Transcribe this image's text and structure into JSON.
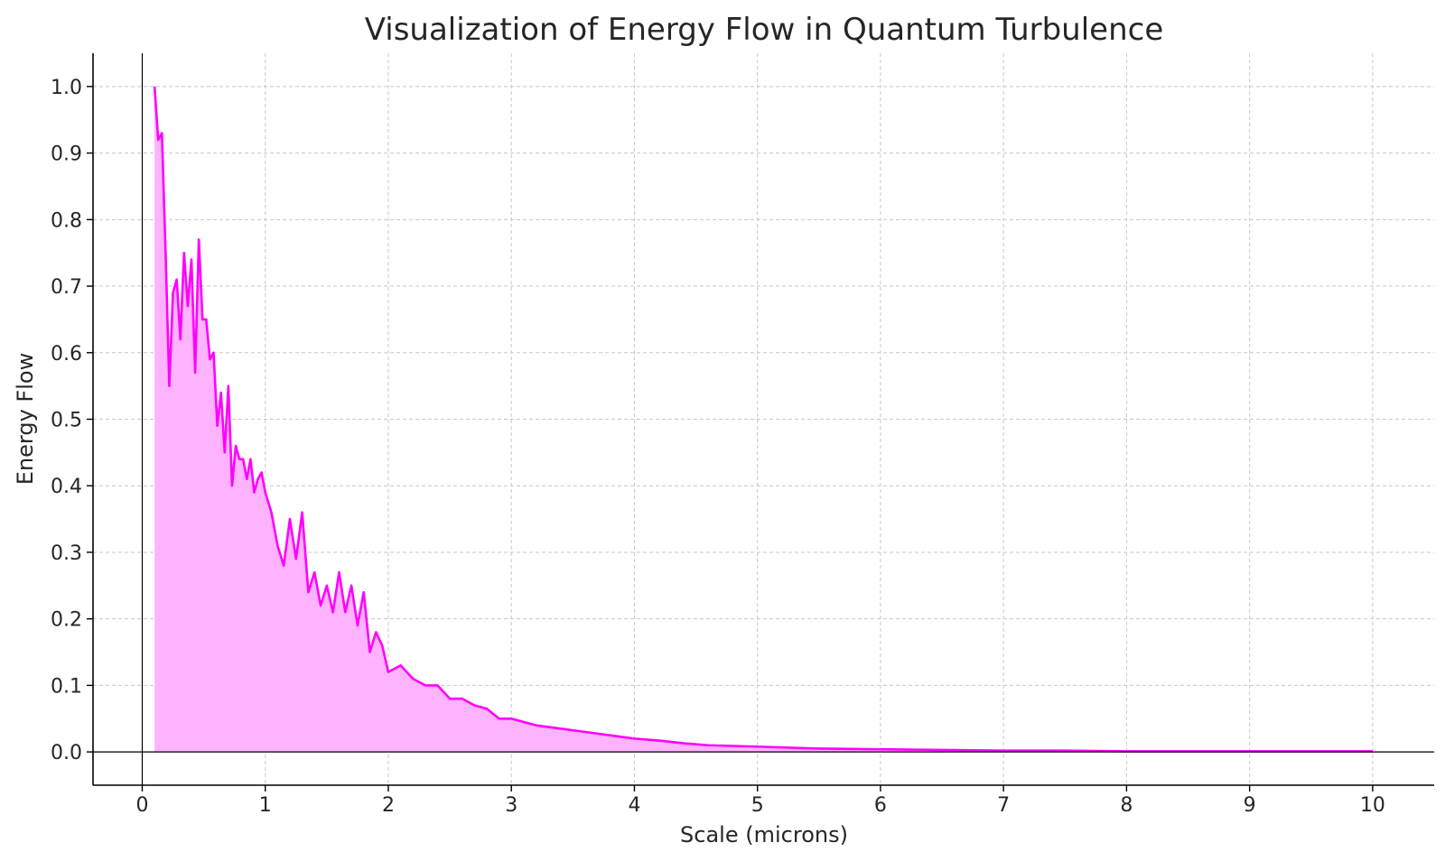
{
  "chart_data": {
    "type": "area",
    "title": "Visualization of Energy Flow in Quantum Turbulence",
    "xlabel": "Scale (microns)",
    "ylabel": "Energy Flow",
    "xlim": [
      -0.4,
      10.5
    ],
    "ylim": [
      -0.05,
      1.05
    ],
    "x_ticks": [
      0,
      1,
      2,
      3,
      4,
      5,
      6,
      7,
      8,
      9,
      10
    ],
    "y_ticks": [
      0.0,
      0.1,
      0.2,
      0.3,
      0.4,
      0.5,
      0.6,
      0.7,
      0.8,
      0.9,
      1.0
    ],
    "x_tick_labels": [
      "0",
      "1",
      "2",
      "3",
      "4",
      "5",
      "6",
      "7",
      "8",
      "9",
      "10"
    ],
    "y_tick_labels": [
      "0.0",
      "0.1",
      "0.2",
      "0.3",
      "0.4",
      "0.5",
      "0.6",
      "0.7",
      "0.8",
      "0.9",
      "1.0"
    ],
    "grid": true,
    "line_color": "#ff00ff",
    "fill_color": "#ffb3ff",
    "series": [
      {
        "x": [
          0.1,
          0.13,
          0.16,
          0.19,
          0.22,
          0.25,
          0.28,
          0.31,
          0.34,
          0.37,
          0.4,
          0.43,
          0.46,
          0.49,
          0.52,
          0.55,
          0.58,
          0.61,
          0.64,
          0.67,
          0.7,
          0.73,
          0.76,
          0.79,
          0.82,
          0.85,
          0.88,
          0.91,
          0.94,
          0.97,
          1.0,
          1.05,
          1.1,
          1.15,
          1.2,
          1.25,
          1.3,
          1.35,
          1.4,
          1.45,
          1.5,
          1.55,
          1.6,
          1.65,
          1.7,
          1.75,
          1.8,
          1.85,
          1.9,
          1.95,
          2.0,
          2.1,
          2.2,
          2.3,
          2.4,
          2.5,
          2.6,
          2.7,
          2.8,
          2.9,
          3.0,
          3.2,
          3.4,
          3.6,
          3.8,
          4.0,
          4.2,
          4.4,
          4.6,
          4.8,
          5.0,
          5.5,
          6.0,
          6.5,
          7.0,
          7.5,
          8.0,
          8.5,
          9.0,
          9.5,
          10.0
        ],
        "y": [
          1.0,
          0.92,
          0.93,
          0.75,
          0.55,
          0.69,
          0.71,
          0.62,
          0.75,
          0.67,
          0.74,
          0.57,
          0.77,
          0.65,
          0.65,
          0.59,
          0.6,
          0.49,
          0.54,
          0.45,
          0.55,
          0.4,
          0.46,
          0.44,
          0.44,
          0.41,
          0.44,
          0.39,
          0.41,
          0.42,
          0.39,
          0.36,
          0.31,
          0.28,
          0.35,
          0.29,
          0.36,
          0.24,
          0.27,
          0.22,
          0.25,
          0.21,
          0.27,
          0.21,
          0.25,
          0.19,
          0.24,
          0.15,
          0.18,
          0.16,
          0.12,
          0.13,
          0.11,
          0.1,
          0.1,
          0.08,
          0.08,
          0.07,
          0.065,
          0.05,
          0.05,
          0.04,
          0.035,
          0.03,
          0.025,
          0.02,
          0.017,
          0.013,
          0.01,
          0.009,
          0.008,
          0.005,
          0.004,
          0.003,
          0.002,
          0.002,
          0.001,
          0.001,
          0.001,
          0.001,
          0.001
        ]
      }
    ]
  }
}
